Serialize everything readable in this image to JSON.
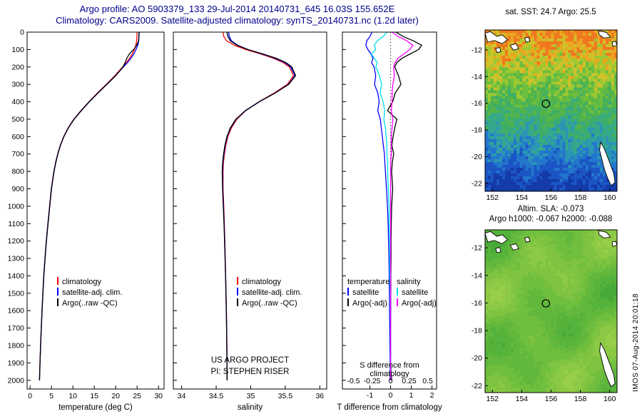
{
  "header": {
    "line1": "Argo profile: AO 5903379_133 29-Jul-2014 20140731_645 16.03S 155.652E",
    "line2": "Climatology: CARS2009. Satellite-adjusted climatology: synTS_20140731.nc (1.2d later)"
  },
  "stamp": "IMOS 07-Aug-2014 20:01:18",
  "colors": {
    "title": "#00008b",
    "climatology": "#ff0000",
    "satellite_adjusted": "#0000ff",
    "argo_raw": "#000000",
    "s_satellite": "#00e0ee",
    "s_argo_adj": "#ff00ff"
  },
  "chart_data": [
    {
      "id": "temperature-profile",
      "type": "line",
      "xlabel": "temperature (deg C)",
      "xlim": [
        0,
        30
      ],
      "ylim": [
        0,
        2050
      ],
      "xticks": [
        0,
        5,
        10,
        15,
        20,
        25,
        30
      ],
      "yticks": [
        0,
        100,
        200,
        300,
        400,
        500,
        600,
        700,
        800,
        900,
        1000,
        1100,
        1200,
        1300,
        1400,
        1500,
        1600,
        1700,
        1800,
        1900,
        2000
      ],
      "legend": [
        {
          "label": "climatology",
          "color": "#ff0000"
        },
        {
          "label": "satellite-adj. clim.",
          "color": "#0000ff"
        },
        {
          "label": "Argo(..raw -QC)",
          "color": "#000000"
        }
      ],
      "depths": [
        0,
        25,
        50,
        75,
        100,
        125,
        150,
        175,
        200,
        250,
        300,
        350,
        400,
        450,
        500,
        550,
        600,
        650,
        700,
        750,
        800,
        900,
        1000,
        1100,
        1200,
        1300,
        1400,
        1500,
        1600,
        1700,
        1800,
        1900,
        2000
      ],
      "series": [
        {
          "name": "climatology",
          "color": "#ff0000",
          "values": [
            25.0,
            24.95,
            24.9,
            24.7,
            24.35,
            23.9,
            23.25,
            22.5,
            21.6,
            19.8,
            17.8,
            15.7,
            13.75,
            11.9,
            10.2,
            8.9,
            7.85,
            7.05,
            6.45,
            5.95,
            5.55,
            4.95,
            4.55,
            4.15,
            3.78,
            3.47,
            3.18,
            2.97,
            2.78,
            2.6,
            2.44,
            2.3,
            2.18
          ]
        },
        {
          "name": "satellite-adj. clim.",
          "color": "#0000ff",
          "values": [
            25.5,
            25.45,
            25.38,
            25.15,
            24.75,
            24.25,
            23.55,
            22.75,
            21.8,
            19.95,
            17.9,
            15.8,
            13.8,
            11.95,
            10.25,
            8.93,
            7.88,
            7.08,
            6.47,
            5.97,
            5.57,
            4.97,
            4.56,
            4.16,
            3.79,
            3.48,
            3.19,
            2.98,
            2.79,
            2.61,
            2.45,
            2.31,
            2.19
          ]
        },
        {
          "name": "Argo(..raw -QC)",
          "color": "#000000",
          "values": [
            25.45,
            25.42,
            25.35,
            24.9,
            24.2,
            23.2,
            22.6,
            22.2,
            21.7,
            20.0,
            17.95,
            15.85,
            13.85,
            12.0,
            10.3,
            8.95,
            7.9,
            7.1,
            6.5,
            6.0,
            5.6,
            5.0,
            4.6,
            4.2,
            3.82,
            3.5,
            3.21,
            3.0,
            2.8,
            2.62,
            2.46,
            2.32,
            2.2
          ]
        }
      ]
    },
    {
      "id": "salinity-profile",
      "type": "line",
      "xlabel": "salinity",
      "xlim": [
        34,
        36
      ],
      "ylim": [
        0,
        2050
      ],
      "xticks": [
        34,
        34.5,
        35,
        35.5,
        36
      ],
      "notes": [
        "US ARGO PROJECT",
        "PI: STEPHEN RISER"
      ],
      "legend": [
        {
          "label": "climatology",
          "color": "#ff0000"
        },
        {
          "label": "satellite-adj. clim.",
          "color": "#0000ff"
        },
        {
          "label": "Argo(..raw -QC)",
          "color": "#000000"
        }
      ],
      "depths": [
        0,
        25,
        50,
        75,
        100,
        125,
        150,
        175,
        200,
        250,
        300,
        350,
        400,
        450,
        500,
        550,
        600,
        650,
        700,
        750,
        800,
        900,
        1000,
        1100,
        1200,
        1300,
        1400,
        1500,
        1600,
        1700,
        1800,
        1900,
        2000
      ],
      "series": [
        {
          "name": "climatology",
          "color": "#ff0000",
          "values": [
            34.6,
            34.61,
            34.65,
            34.76,
            34.93,
            35.14,
            35.33,
            35.47,
            35.56,
            35.62,
            35.53,
            35.34,
            35.12,
            34.93,
            34.8,
            34.72,
            34.67,
            34.64,
            34.62,
            34.605,
            34.6,
            34.6,
            34.61,
            34.618,
            34.625,
            34.632,
            34.638,
            34.643,
            34.648,
            34.652,
            34.655,
            34.658,
            34.66
          ]
        },
        {
          "name": "satellite-adj. clim.",
          "color": "#0000ff",
          "values": [
            34.68,
            34.69,
            34.72,
            34.81,
            34.96,
            35.16,
            35.355,
            35.495,
            35.58,
            35.64,
            35.545,
            35.35,
            35.125,
            34.928,
            34.79,
            34.71,
            34.66,
            34.632,
            34.612,
            34.598,
            34.592,
            34.596,
            34.606,
            34.615,
            34.623,
            34.63,
            34.637,
            34.642,
            34.647,
            34.651,
            34.654,
            34.657,
            34.659
          ]
        },
        {
          "name": "Argo(..raw -QC)",
          "color": "#000000",
          "values": [
            34.655,
            34.67,
            34.705,
            34.8,
            34.955,
            35.175,
            35.37,
            35.51,
            35.595,
            35.65,
            35.55,
            35.352,
            35.122,
            34.925,
            34.785,
            34.705,
            34.655,
            34.627,
            34.607,
            34.593,
            34.587,
            34.592,
            34.603,
            34.613,
            34.621,
            34.629,
            34.636,
            34.641,
            34.646,
            34.65,
            34.653,
            34.656,
            34.658
          ]
        }
      ]
    },
    {
      "id": "difference-profile",
      "type": "line",
      "xlabel_bottom": "T difference from climatology",
      "xlabel_inner": "S difference from climatology",
      "t_xlim": [
        -2.33,
        2.22
      ],
      "s_xlim": [
        -0.65,
        0.62
      ],
      "t_xticks": [
        -1,
        0,
        1,
        2
      ],
      "s_xticks": [
        -0.5,
        -0.25,
        0,
        0.25,
        0.5
      ],
      "ylim": [
        0,
        2050
      ],
      "legend_columns": [
        {
          "header": "temperature",
          "items": [
            {
              "label": "satellite",
              "color": "#0000ff"
            },
            {
              "label": "Argo(-adj)",
              "color": "#000000"
            }
          ]
        },
        {
          "header": "salinity",
          "items": [
            {
              "label": "satellite",
              "color": "#00e0ee"
            },
            {
              "label": "Argo(-adj)",
              "color": "#ff00ff"
            }
          ]
        }
      ],
      "depths": [
        0,
        25,
        50,
        75,
        100,
        125,
        150,
        175,
        200,
        250,
        300,
        350,
        400,
        450,
        500,
        550,
        600,
        650,
        700,
        750,
        800,
        900,
        1000,
        1100,
        1200,
        1300,
        1400,
        1500,
        1600,
        1700,
        1800,
        1900,
        2000
      ],
      "series": [
        {
          "name": "temperature satellite",
          "scale": "t",
          "color": "#0000ff",
          "values": [
            -0.9,
            -1.0,
            -1.15,
            -1.2,
            -1.1,
            -0.95,
            -0.85,
            -0.92,
            -0.8,
            -0.72,
            -0.78,
            -0.62,
            -0.55,
            -0.62,
            -0.5,
            -0.45,
            -0.4,
            -0.35,
            -0.3,
            -0.28,
            -0.25,
            -0.2,
            -0.15,
            -0.12,
            -0.1,
            -0.08,
            -0.07,
            -0.06,
            -0.05,
            -0.04,
            -0.03,
            -0.02,
            -0.02
          ]
        },
        {
          "name": "temperature Argo(-adj)",
          "scale": "t",
          "color": "#000000",
          "values": [
            0.25,
            0.6,
            1.1,
            1.5,
            1.35,
            0.95,
            0.55,
            0.3,
            0.2,
            0.38,
            0.5,
            0.22,
            0.1,
            -0.15,
            0.3,
            0.2,
            0.12,
            0.06,
            0.15,
            0.08,
            0.05,
            0.1,
            0.05,
            0.03,
            0.02,
            0.02,
            0.01,
            0.01,
            0.01,
            0.0,
            0.0,
            0.0,
            0.05
          ]
        },
        {
          "name": "salinity satellite",
          "scale": "s",
          "color": "#00e0ee",
          "values": [
            -0.05,
            -0.1,
            -0.18,
            -0.22,
            -0.2,
            -0.26,
            -0.22,
            -0.18,
            -0.2,
            -0.15,
            -0.12,
            -0.14,
            -0.1,
            -0.08,
            -0.09,
            -0.07,
            -0.06,
            -0.05,
            -0.05,
            -0.04,
            -0.04,
            -0.03,
            -0.02,
            -0.02,
            -0.01,
            -0.01,
            -0.01,
            0.0,
            0.0,
            0.0,
            0.0,
            0.0,
            0.0
          ]
        },
        {
          "name": "salinity Argo(-adj)",
          "scale": "s",
          "color": "#ff00ff",
          "values": [
            0.02,
            0.1,
            0.22,
            0.3,
            0.26,
            0.18,
            0.1,
            0.06,
            0.04,
            0.05,
            0.03,
            0.02,
            0.02,
            0.01,
            0.03,
            0.02,
            0.01,
            0.01,
            0.01,
            0.0,
            0.0,
            0.0,
            0.0,
            0.0,
            0.0,
            0.0,
            0.0,
            0.0,
            0.0,
            0.0,
            0.0,
            0.0,
            0.0
          ]
        }
      ]
    },
    {
      "id": "sst-map",
      "type": "heatmap",
      "title": "sat. SST: 24.7 Argo: 25.5",
      "xticks": [
        152,
        154,
        156,
        158,
        160
      ],
      "yticks": [
        -12,
        -14,
        -16,
        -18,
        -20,
        -22
      ],
      "lon_range": [
        151.5,
        160.5
      ],
      "lat_range": [
        -10.5,
        -22.6
      ],
      "marker": {
        "lon": 155.652,
        "lat": -16.03
      },
      "palette": [
        "#f07820",
        "#e8a820",
        "#cfc22a",
        "#9cc832",
        "#6cbe3e",
        "#52b44a",
        "#3fae68",
        "#35a88c",
        "#2b96b4",
        "#2276cc",
        "#1b55c4",
        "#143ba8"
      ]
    },
    {
      "id": "sla-map",
      "type": "heatmap",
      "title": "Altim. SLA: -0.073",
      "subtitle": "Argo h1000: -0.067 h2000: -0.088",
      "xticks": [
        152,
        154,
        156,
        158,
        160
      ],
      "yticks": [
        -12,
        -14,
        -16,
        -18,
        -20,
        -22
      ],
      "lon_range": [
        151.5,
        160.5
      ],
      "lat_range": [
        -10.7,
        -22.5
      ],
      "marker": {
        "lon": 155.652,
        "lat": -16.03
      },
      "palette": [
        "#48aa38",
        "#55b23a",
        "#62b83c",
        "#70be3e",
        "#7ec441",
        "#8cc944",
        "#99ce48"
      ]
    }
  ]
}
